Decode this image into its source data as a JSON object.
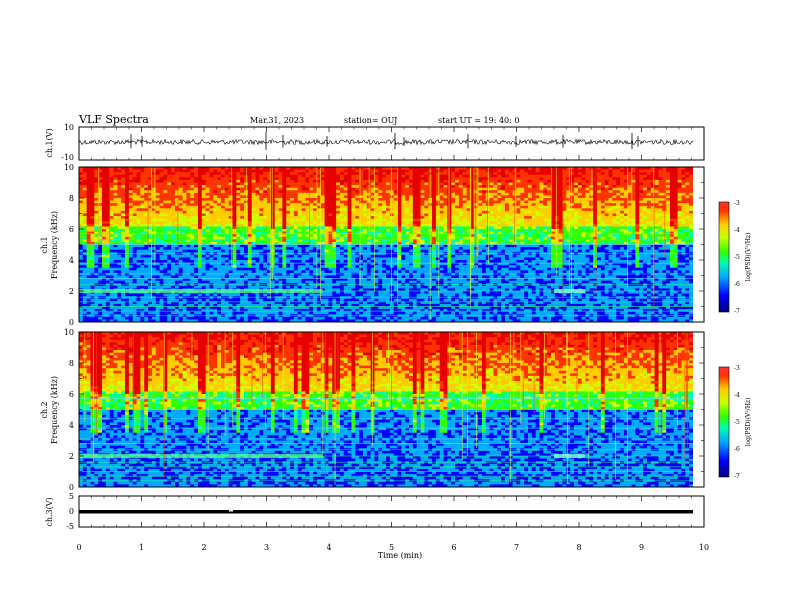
{
  "header": {
    "title": "VLF Spectra",
    "date": "Mar.31, 2023",
    "station": "station= OUJ",
    "start": "start  UT =   19: 40: 0"
  },
  "chart_data": [
    {
      "type": "line",
      "name": "ch1-waveform",
      "ylabel": "ch.1(V)",
      "ylim": [
        -10,
        10
      ],
      "yticks": [
        "10",
        "-10"
      ],
      "xlim": [
        0,
        10
      ]
    },
    {
      "type": "heatmap",
      "name": "ch1-spectrogram",
      "ylabel_line1": "ch.1",
      "ylabel_line2": "Frequency  (kHz)",
      "ylim": [
        0,
        10
      ],
      "yticks": [
        "0",
        "2",
        "4",
        "6",
        "8",
        "10"
      ],
      "xlim": [
        0,
        10
      ],
      "colorbar": {
        "label": "log(PSD)(V²/Hz)",
        "ticks": [
          "-3",
          "-4",
          "-5",
          "-6",
          "-7"
        ],
        "range": [
          -7,
          -3
        ]
      }
    },
    {
      "type": "heatmap",
      "name": "ch2-spectrogram",
      "ylabel_line1": "ch.2",
      "ylabel_line2": "Frequency  (kHz)",
      "ylim": [
        0,
        10
      ],
      "yticks": [
        "0",
        "2",
        "4",
        "6",
        "8",
        "10"
      ],
      "xlim": [
        0,
        10
      ],
      "colorbar": {
        "label": "log(PSD)(V²/Hz)",
        "ticks": [
          "-3",
          "-4",
          "-5",
          "-6",
          "-7"
        ],
        "range": [
          -7,
          -3
        ]
      }
    },
    {
      "type": "line",
      "name": "ch3-waveform",
      "ylabel": "ch.3(V)",
      "ylim": [
        -5,
        5
      ],
      "yticks": [
        "5",
        "0",
        "-5"
      ],
      "xlim": [
        0,
        10
      ],
      "xlabel": "Time  (min)",
      "xticks": [
        "0",
        "1",
        "2",
        "3",
        "4",
        "5",
        "6",
        "7",
        "8",
        "9",
        "10"
      ]
    }
  ],
  "colors": {
    "ink": "#000000",
    "colormap": [
      "#00007a",
      "#0000ff",
      "#00aaff",
      "#00ffaa",
      "#33ff00",
      "#ccff00",
      "#ffcc00",
      "#ff3300",
      "#e60000"
    ]
  }
}
